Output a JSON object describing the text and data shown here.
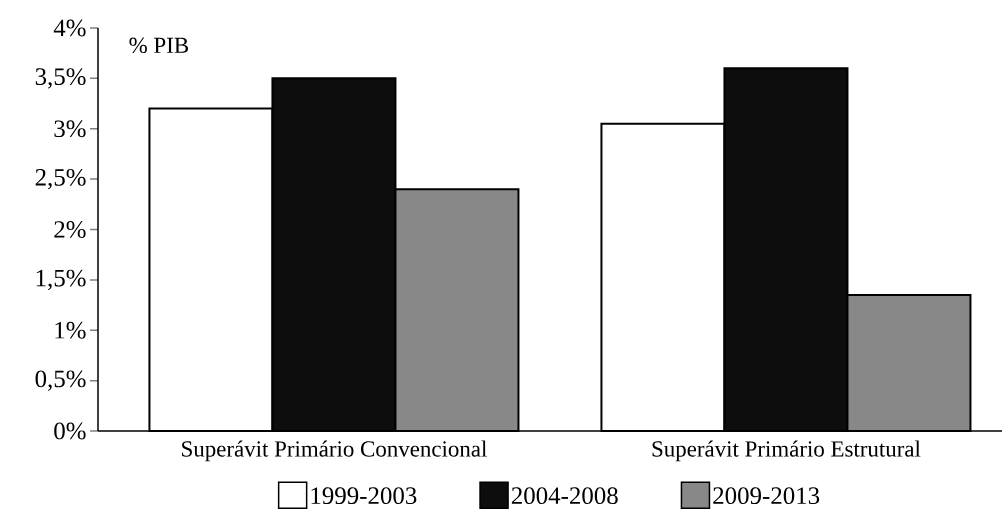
{
  "chart_data": {
    "type": "bar",
    "ylabel": "% PIB",
    "categories": [
      "Superávit Primário Convencional",
      "Superávit Primário Estrutural"
    ],
    "series": [
      {
        "name": "1999-2003",
        "color": "#ffffff",
        "values": [
          3.2,
          3.05
        ]
      },
      {
        "name": "2004-2008",
        "color": "#0d0d0d",
        "values": [
          3.5,
          3.6
        ]
      },
      {
        "name": "2009-2013",
        "color": "#888888",
        "values": [
          2.4,
          1.35
        ]
      }
    ],
    "ylim": [
      0,
      4
    ],
    "yticks": [
      {
        "value": 0,
        "label": "0%"
      },
      {
        "value": 0.5,
        "label": "0,5%"
      },
      {
        "value": 1,
        "label": "1%"
      },
      {
        "value": 1.5,
        "label": "1,5%"
      },
      {
        "value": 2,
        "label": "2%"
      },
      {
        "value": 2.5,
        "label": "2,5%"
      },
      {
        "value": 3,
        "label": "3%"
      },
      {
        "value": 3.5,
        "label": "3,5%"
      },
      {
        "value": 4,
        "label": "4%"
      }
    ],
    "legend": "bottom",
    "grid": false
  }
}
